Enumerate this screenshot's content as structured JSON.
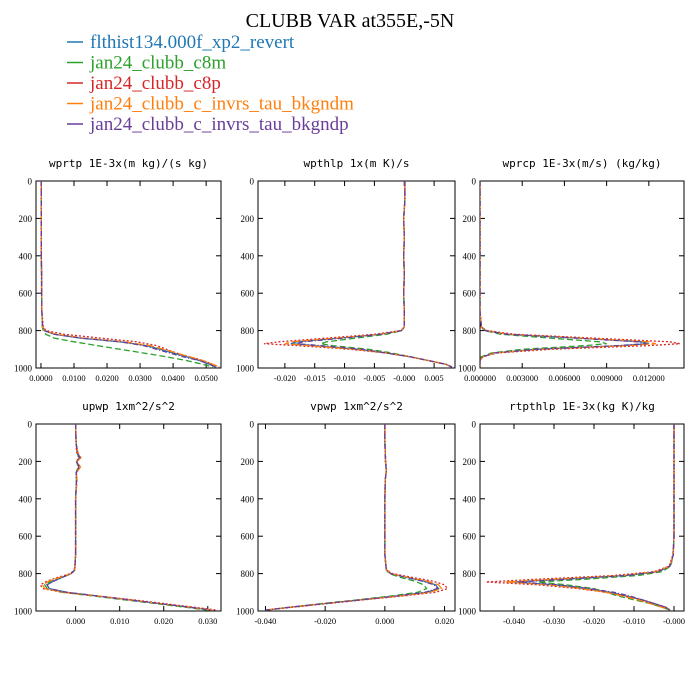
{
  "title": "CLUBB VAR at355E,-5N",
  "legend": [
    {
      "label": "flthist134.000f_xp2_revert",
      "color": "#1f77b4",
      "dash": ""
    },
    {
      "label": "jan24_clubb_c8m",
      "color": "#2ca02c",
      "dash": "6,3"
    },
    {
      "label": "jan24_clubb_c8p",
      "color": "#d62728",
      "dash": "2,2"
    },
    {
      "label": "jan24_clubb_c_invrs_tau_bkgndm",
      "color": "#ff7f0e",
      "dash": "8,3"
    },
    {
      "label": "jan24_clubb_c_invrs_tau_bkgndp",
      "color": "#6a3d9a",
      "dash": "5,2,1,2"
    }
  ],
  "chart_data": [
    {
      "type": "line",
      "title": "wprtp  1E-3x(m kg)/(s kg)",
      "xlim": [
        -0.0015,
        0.0545
      ],
      "ylim": [
        1000,
        0
      ],
      "xticks": [
        "0.0000",
        "0.0100",
        "0.0200",
        "0.0300",
        "0.0400",
        "0.0500"
      ],
      "xtick_values": [
        0,
        0.01,
        0.02,
        0.03,
        0.04,
        0.05
      ],
      "yticks": [
        "0",
        "200",
        "400",
        "600",
        "800",
        "1000"
      ],
      "ytick_values": [
        0,
        200,
        400,
        600,
        800,
        1000
      ],
      "y": [
        0,
        100,
        200,
        300,
        400,
        500,
        600,
        700,
        780,
        800,
        820,
        840,
        860,
        880,
        900,
        920,
        940,
        960,
        980,
        995
      ],
      "series": [
        {
          "values": [
            0.0001,
            0.0001,
            0.0001,
            0.0001,
            0.0001,
            0.0002,
            0.0002,
            0.0003,
            0.0005,
            0.001,
            0.004,
            0.012,
            0.024,
            0.032,
            0.036,
            0.04,
            0.044,
            0.048,
            0.051,
            0.053
          ]
        },
        {
          "values": [
            0.0001,
            0.0001,
            0.0001,
            0.0001,
            0.0001,
            0.0002,
            0.0002,
            0.0003,
            0.0004,
            0.0007,
            0.0015,
            0.004,
            0.01,
            0.017,
            0.024,
            0.031,
            0.038,
            0.044,
            0.049,
            0.052
          ]
        },
        {
          "values": [
            0.0001,
            0.0001,
            0.0001,
            0.0001,
            0.0001,
            0.0002,
            0.0002,
            0.0003,
            0.0007,
            0.0015,
            0.007,
            0.018,
            0.029,
            0.035,
            0.038,
            0.041,
            0.045,
            0.049,
            0.052,
            0.054
          ]
        },
        {
          "values": [
            0.0001,
            0.0001,
            0.0001,
            0.0001,
            0.0001,
            0.0002,
            0.0002,
            0.0003,
            0.0005,
            0.0011,
            0.0045,
            0.013,
            0.025,
            0.033,
            0.037,
            0.041,
            0.045,
            0.049,
            0.052,
            0.054
          ]
        },
        {
          "values": [
            0.0001,
            0.0001,
            0.0001,
            0.0001,
            0.0001,
            0.0002,
            0.0002,
            0.0003,
            0.0005,
            0.001,
            0.004,
            0.012,
            0.024,
            0.031,
            0.035,
            0.039,
            0.043,
            0.048,
            0.051,
            0.053
          ]
        }
      ]
    },
    {
      "type": "line",
      "title": "wpthlp  1x(m K)/s",
      "xlim": [
        -0.0245,
        0.0085
      ],
      "ylim": [
        1000,
        0
      ],
      "xticks": [
        "-0.020",
        "-0.015",
        "-0.010",
        "-0.005",
        "-0.000",
        "0.005"
      ],
      "xtick_values": [
        -0.02,
        -0.015,
        -0.01,
        -0.005,
        0,
        0.005
      ],
      "yticks": [
        "0",
        "200",
        "400",
        "600",
        "800",
        "1000"
      ],
      "ytick_values": [
        0,
        200,
        400,
        600,
        800,
        1000
      ],
      "y": [
        0,
        100,
        200,
        300,
        400,
        500,
        600,
        700,
        780,
        800,
        820,
        840,
        860,
        870,
        880,
        900,
        920,
        940,
        960,
        980,
        995
      ],
      "series": [
        {
          "values": [
            0.0001,
            0.0001,
            -0.0001,
            0,
            -0.0001,
            0,
            -0.0001,
            0,
            0,
            -0.0005,
            -0.004,
            -0.011,
            -0.018,
            -0.019,
            -0.015,
            -0.008,
            -0.003,
            0.001,
            0.004,
            0.007,
            0.008
          ]
        },
        {
          "values": [
            0.0001,
            0.0001,
            -0.0001,
            0,
            -0.0001,
            0,
            -0.0001,
            0,
            0,
            -0.0004,
            -0.003,
            -0.008,
            -0.013,
            -0.014,
            -0.012,
            -0.006,
            -0.002,
            0.001,
            0.004,
            0.007,
            0.008
          ]
        },
        {
          "values": [
            0.0001,
            0.0001,
            -0.0001,
            0,
            -0.0001,
            0,
            -0.0001,
            0,
            0,
            -0.0006,
            -0.005,
            -0.013,
            -0.021,
            -0.0235,
            -0.018,
            -0.009,
            -0.003,
            0.001,
            0.004,
            0.007,
            0.008
          ]
        },
        {
          "values": [
            0.0001,
            0.0001,
            -0.0001,
            0,
            -0.0001,
            0,
            -0.0001,
            0,
            0,
            -0.0005,
            -0.004,
            -0.011,
            -0.019,
            -0.02,
            -0.016,
            -0.008,
            -0.003,
            0.001,
            0.004,
            0.007,
            0.008
          ]
        },
        {
          "values": [
            0.0001,
            0.0001,
            -0.0001,
            0,
            -0.0001,
            0,
            -0.0001,
            0,
            0,
            -0.0005,
            -0.004,
            -0.01,
            -0.017,
            -0.018,
            -0.014,
            -0.007,
            -0.003,
            0.001,
            0.004,
            0.007,
            0.008
          ]
        }
      ]
    },
    {
      "type": "line",
      "title": "wprcp  1E-3x(m/s) (kg/kg)",
      "xlim": [
        0,
        0.0145
      ],
      "ylim": [
        1000,
        0
      ],
      "xticks": [
        "0.000000",
        "0.003000",
        "0.006000",
        "0.009000",
        "0.012000"
      ],
      "xtick_values": [
        0,
        0.003,
        0.006,
        0.009,
        0.012
      ],
      "yticks": [
        "0",
        "200",
        "400",
        "600",
        "800",
        "1000"
      ],
      "ytick_values": [
        0,
        200,
        400,
        600,
        800,
        1000
      ],
      "y": [
        0,
        100,
        200,
        300,
        400,
        500,
        600,
        700,
        780,
        800,
        820,
        840,
        860,
        870,
        880,
        900,
        920,
        940,
        960,
        980,
        995
      ],
      "series": [
        {
          "values": [
            0,
            0,
            0,
            0,
            0,
            0,
            0,
            0,
            0.0001,
            0.0004,
            0.002,
            0.007,
            0.0115,
            0.012,
            0.01,
            0.004,
            0.001,
            0.0002,
            0,
            0,
            0
          ]
        },
        {
          "values": [
            0,
            0,
            0,
            0,
            0,
            0,
            0,
            0,
            0.0001,
            0.0003,
            0.0015,
            0.005,
            0.0085,
            0.009,
            0.0075,
            0.003,
            0.0008,
            0.0001,
            0,
            0,
            0
          ]
        },
        {
          "values": [
            0,
            0,
            0,
            0,
            0,
            0,
            0,
            0,
            0.0001,
            0.0005,
            0.0025,
            0.008,
            0.0135,
            0.0142,
            0.012,
            0.005,
            0.0012,
            0.0002,
            0,
            0,
            0
          ]
        },
        {
          "values": [
            0,
            0,
            0,
            0,
            0,
            0,
            0,
            0,
            0.0001,
            0.0004,
            0.002,
            0.0072,
            0.012,
            0.0125,
            0.0105,
            0.0042,
            0.001,
            0.0002,
            0,
            0,
            0
          ]
        },
        {
          "values": [
            0,
            0,
            0,
            0,
            0,
            0,
            0,
            0,
            0.0001,
            0.0004,
            0.0019,
            0.0068,
            0.0112,
            0.0118,
            0.0098,
            0.004,
            0.001,
            0.0002,
            0,
            0,
            0
          ]
        }
      ]
    },
    {
      "type": "line",
      "title": "upwp  1xm^2/s^2",
      "xlim": [
        -0.009,
        0.033
      ],
      "ylim": [
        1000,
        0
      ],
      "xticks": [
        "0.000",
        "0.010",
        "0.020",
        "0.030"
      ],
      "xtick_values": [
        0,
        0.01,
        0.02,
        0.03
      ],
      "yticks": [
        "0",
        "200",
        "400",
        "600",
        "800",
        "1000"
      ],
      "ytick_values": [
        0,
        200,
        400,
        600,
        800,
        1000
      ],
      "y": [
        0,
        100,
        150,
        180,
        200,
        230,
        260,
        300,
        400,
        500,
        600,
        700,
        780,
        800,
        820,
        840,
        860,
        880,
        900,
        920,
        940,
        960,
        980,
        995
      ],
      "series": [
        {
          "values": [
            0,
            0.0001,
            0.0003,
            0.0008,
            0.0002,
            0.0007,
            0.0001,
            0.0002,
            0,
            0,
            0,
            0,
            -0.0002,
            -0.001,
            -0.003,
            -0.005,
            -0.0065,
            -0.006,
            -0.002,
            0.005,
            0.012,
            0.019,
            0.026,
            0.031
          ]
        },
        {
          "values": [
            0,
            0.0001,
            0.0004,
            0.0006,
            0.0003,
            0.0005,
            0.0002,
            0.0002,
            0,
            0,
            0,
            0,
            -0.0002,
            -0.0009,
            -0.003,
            -0.0055,
            -0.007,
            -0.0065,
            -0.003,
            0.004,
            0.011,
            0.018,
            0.025,
            0.03
          ]
        },
        {
          "values": [
            0,
            0.0001,
            0.0002,
            0.0009,
            0.0001,
            0.0008,
            0.0001,
            0.0003,
            0,
            0,
            0,
            0,
            -0.0003,
            -0.0012,
            -0.004,
            -0.0065,
            -0.008,
            -0.0075,
            -0.003,
            0.005,
            0.013,
            0.02,
            0.027,
            0.032
          ]
        },
        {
          "values": [
            0,
            0.0001,
            0.0005,
            0.0012,
            0.0003,
            0.0011,
            0.0002,
            0.0003,
            0,
            0,
            0,
            0,
            -0.0002,
            -0.001,
            -0.0035,
            -0.006,
            -0.0075,
            -0.007,
            -0.0025,
            0.005,
            0.012,
            0.019,
            0.026,
            0.031
          ]
        },
        {
          "values": [
            0,
            0.0001,
            0.0004,
            0.001,
            0.0002,
            0.0009,
            0.0001,
            0.0002,
            0,
            0,
            0,
            0,
            -0.0002,
            -0.001,
            -0.003,
            -0.005,
            -0.0065,
            -0.006,
            -0.002,
            0.005,
            0.012,
            0.019,
            0.026,
            0.031
          ]
        }
      ]
    },
    {
      "type": "line",
      "title": "vpwp  1xm^2/s^2",
      "xlim": [
        -0.0425,
        0.0235
      ],
      "ylim": [
        1000,
        0
      ],
      "xticks": [
        "-0.040",
        "-0.020",
        "0.000",
        "0.020"
      ],
      "xtick_values": [
        -0.04,
        -0.02,
        0,
        0.02
      ],
      "yticks": [
        "0",
        "200",
        "400",
        "600",
        "800",
        "1000"
      ],
      "ytick_values": [
        0,
        200,
        400,
        600,
        800,
        1000
      ],
      "y": [
        0,
        100,
        200,
        250,
        300,
        400,
        500,
        600,
        700,
        780,
        800,
        820,
        840,
        860,
        880,
        900,
        920,
        940,
        960,
        980,
        995
      ],
      "series": [
        {
          "values": [
            0,
            0,
            0.0002,
            0.0005,
            0.0001,
            0,
            0,
            0,
            0,
            0.0005,
            0.002,
            0.007,
            0.013,
            0.017,
            0.018,
            0.014,
            0.004,
            -0.008,
            -0.02,
            -0.032,
            -0.04
          ]
        },
        {
          "values": [
            0,
            0,
            0.0002,
            0.0004,
            0.0001,
            0,
            0,
            0,
            0,
            0.0004,
            0.0015,
            0.005,
            0.01,
            0.013,
            0.014,
            0.011,
            0.002,
            -0.009,
            -0.021,
            -0.032,
            -0.04
          ]
        },
        {
          "values": [
            0,
            0,
            0.0003,
            0.0006,
            0.0001,
            0,
            0,
            0,
            0,
            0.0006,
            0.0025,
            0.009,
            0.016,
            0.02,
            0.021,
            0.017,
            0.006,
            -0.007,
            -0.019,
            -0.031,
            -0.04
          ]
        },
        {
          "values": [
            0,
            0,
            0.0002,
            0.0005,
            0.0001,
            0,
            0,
            0,
            0,
            0.0005,
            0.002,
            0.0075,
            0.014,
            0.018,
            0.019,
            0.015,
            0.005,
            -0.008,
            -0.02,
            -0.032,
            -0.04
          ]
        },
        {
          "values": [
            0,
            0,
            0.0002,
            0.0005,
            0.0001,
            0,
            0,
            0,
            0,
            0.0005,
            0.002,
            0.007,
            0.0125,
            0.0165,
            0.0175,
            0.0135,
            0.004,
            -0.008,
            -0.02,
            -0.032,
            -0.04
          ]
        }
      ]
    },
    {
      "type": "line",
      "title": "rtpthlp  1E-3x(kg K)/kg",
      "xlim": [
        -0.0485,
        0.0025
      ],
      "ylim": [
        1000,
        0
      ],
      "xticks": [
        "-0.040",
        "-0.030",
        "-0.020",
        "-0.010",
        "-0.000"
      ],
      "xtick_values": [
        -0.04,
        -0.03,
        -0.02,
        -0.01,
        0
      ],
      "yticks": [
        "0",
        "200",
        "400",
        "600",
        "800",
        "1000"
      ],
      "ytick_values": [
        0,
        200,
        400,
        600,
        800,
        1000
      ],
      "y": [
        0,
        100,
        200,
        300,
        400,
        500,
        600,
        700,
        760,
        790,
        810,
        830,
        845,
        860,
        880,
        900,
        920,
        940,
        960,
        980,
        995
      ],
      "series": [
        {
          "values": [
            0,
            0,
            0,
            0,
            0,
            0,
            0,
            -0.0002,
            -0.001,
            -0.004,
            -0.012,
            -0.028,
            -0.04,
            -0.03,
            -0.022,
            -0.016,
            -0.012,
            -0.008,
            -0.005,
            -0.002,
            -0.001
          ]
        },
        {
          "values": [
            0,
            0,
            0,
            0,
            0,
            0,
            0,
            -0.0002,
            -0.0008,
            -0.003,
            -0.009,
            -0.022,
            -0.034,
            -0.027,
            -0.02,
            -0.017,
            -0.014,
            -0.01,
            -0.006,
            -0.003,
            -0.001
          ]
        },
        {
          "values": [
            0,
            0,
            0,
            0,
            0,
            0,
            0,
            -0.0003,
            -0.0012,
            -0.005,
            -0.015,
            -0.034,
            -0.047,
            -0.034,
            -0.024,
            -0.017,
            -0.012,
            -0.008,
            -0.005,
            -0.002,
            -0.001
          ]
        },
        {
          "values": [
            0,
            0,
            0,
            0,
            0,
            0,
            0,
            -0.0002,
            -0.001,
            -0.0045,
            -0.013,
            -0.03,
            -0.042,
            -0.031,
            -0.023,
            -0.017,
            -0.013,
            -0.009,
            -0.006,
            -0.003,
            -0.001
          ]
        },
        {
          "values": [
            0,
            0,
            0,
            0,
            0,
            0,
            0,
            -0.0002,
            -0.001,
            -0.004,
            -0.012,
            -0.027,
            -0.039,
            -0.029,
            -0.021,
            -0.015,
            -0.011,
            -0.008,
            -0.005,
            -0.002,
            -0.001
          ]
        }
      ]
    }
  ]
}
